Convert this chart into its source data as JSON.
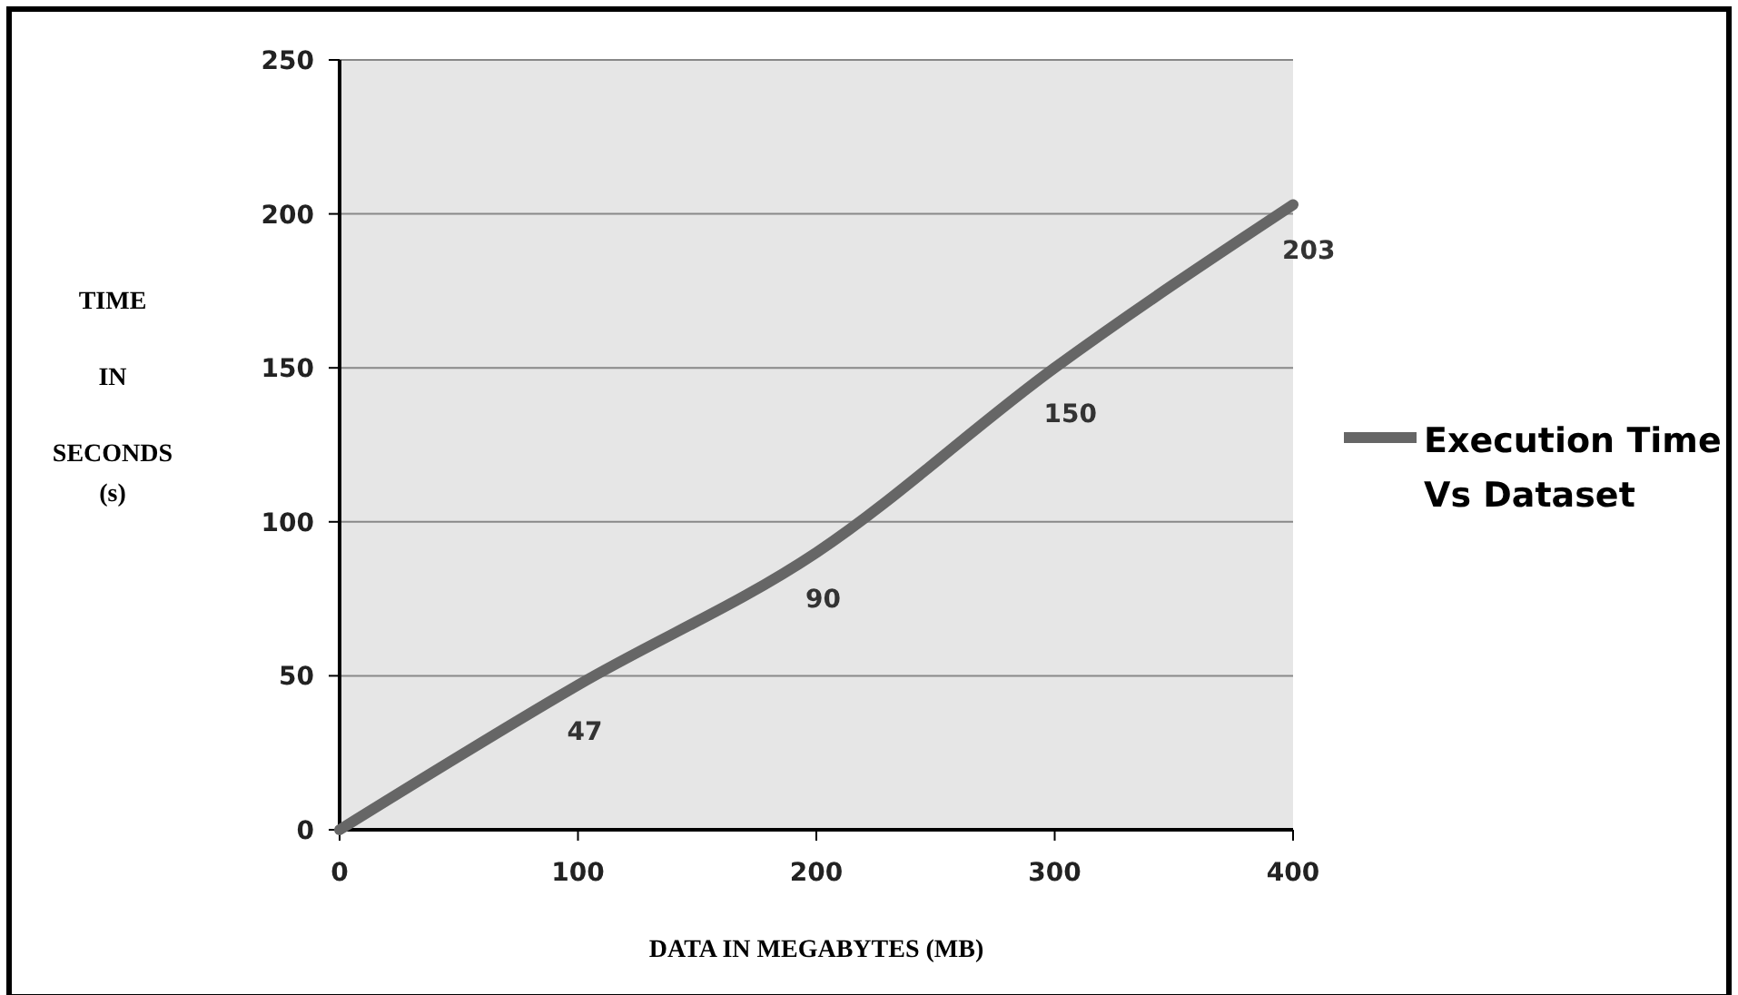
{
  "chart_data": {
    "type": "line",
    "xlabel": "DATA IN MEGABYTES  (MB)",
    "ylabel": "TIME IN SECONDS (s)",
    "x": [
      0,
      100,
      200,
      300,
      400
    ],
    "series": [
      {
        "name": "Execution Time Vs Dataset",
        "color": "#666666",
        "values": [
          0,
          47,
          90,
          150,
          203
        ],
        "value_labels": [
          null,
          "47",
          "90",
          "150",
          "203"
        ]
      }
    ],
    "xlim": [
      0,
      400
    ],
    "xticks": [
      0,
      100,
      200,
      300,
      400
    ],
    "ylim": [
      0,
      250
    ],
    "yticks": [
      0,
      50,
      100,
      150,
      200,
      250
    ],
    "grid": "y",
    "legend": "right",
    "marker": "none",
    "line_style": "solid"
  }
}
